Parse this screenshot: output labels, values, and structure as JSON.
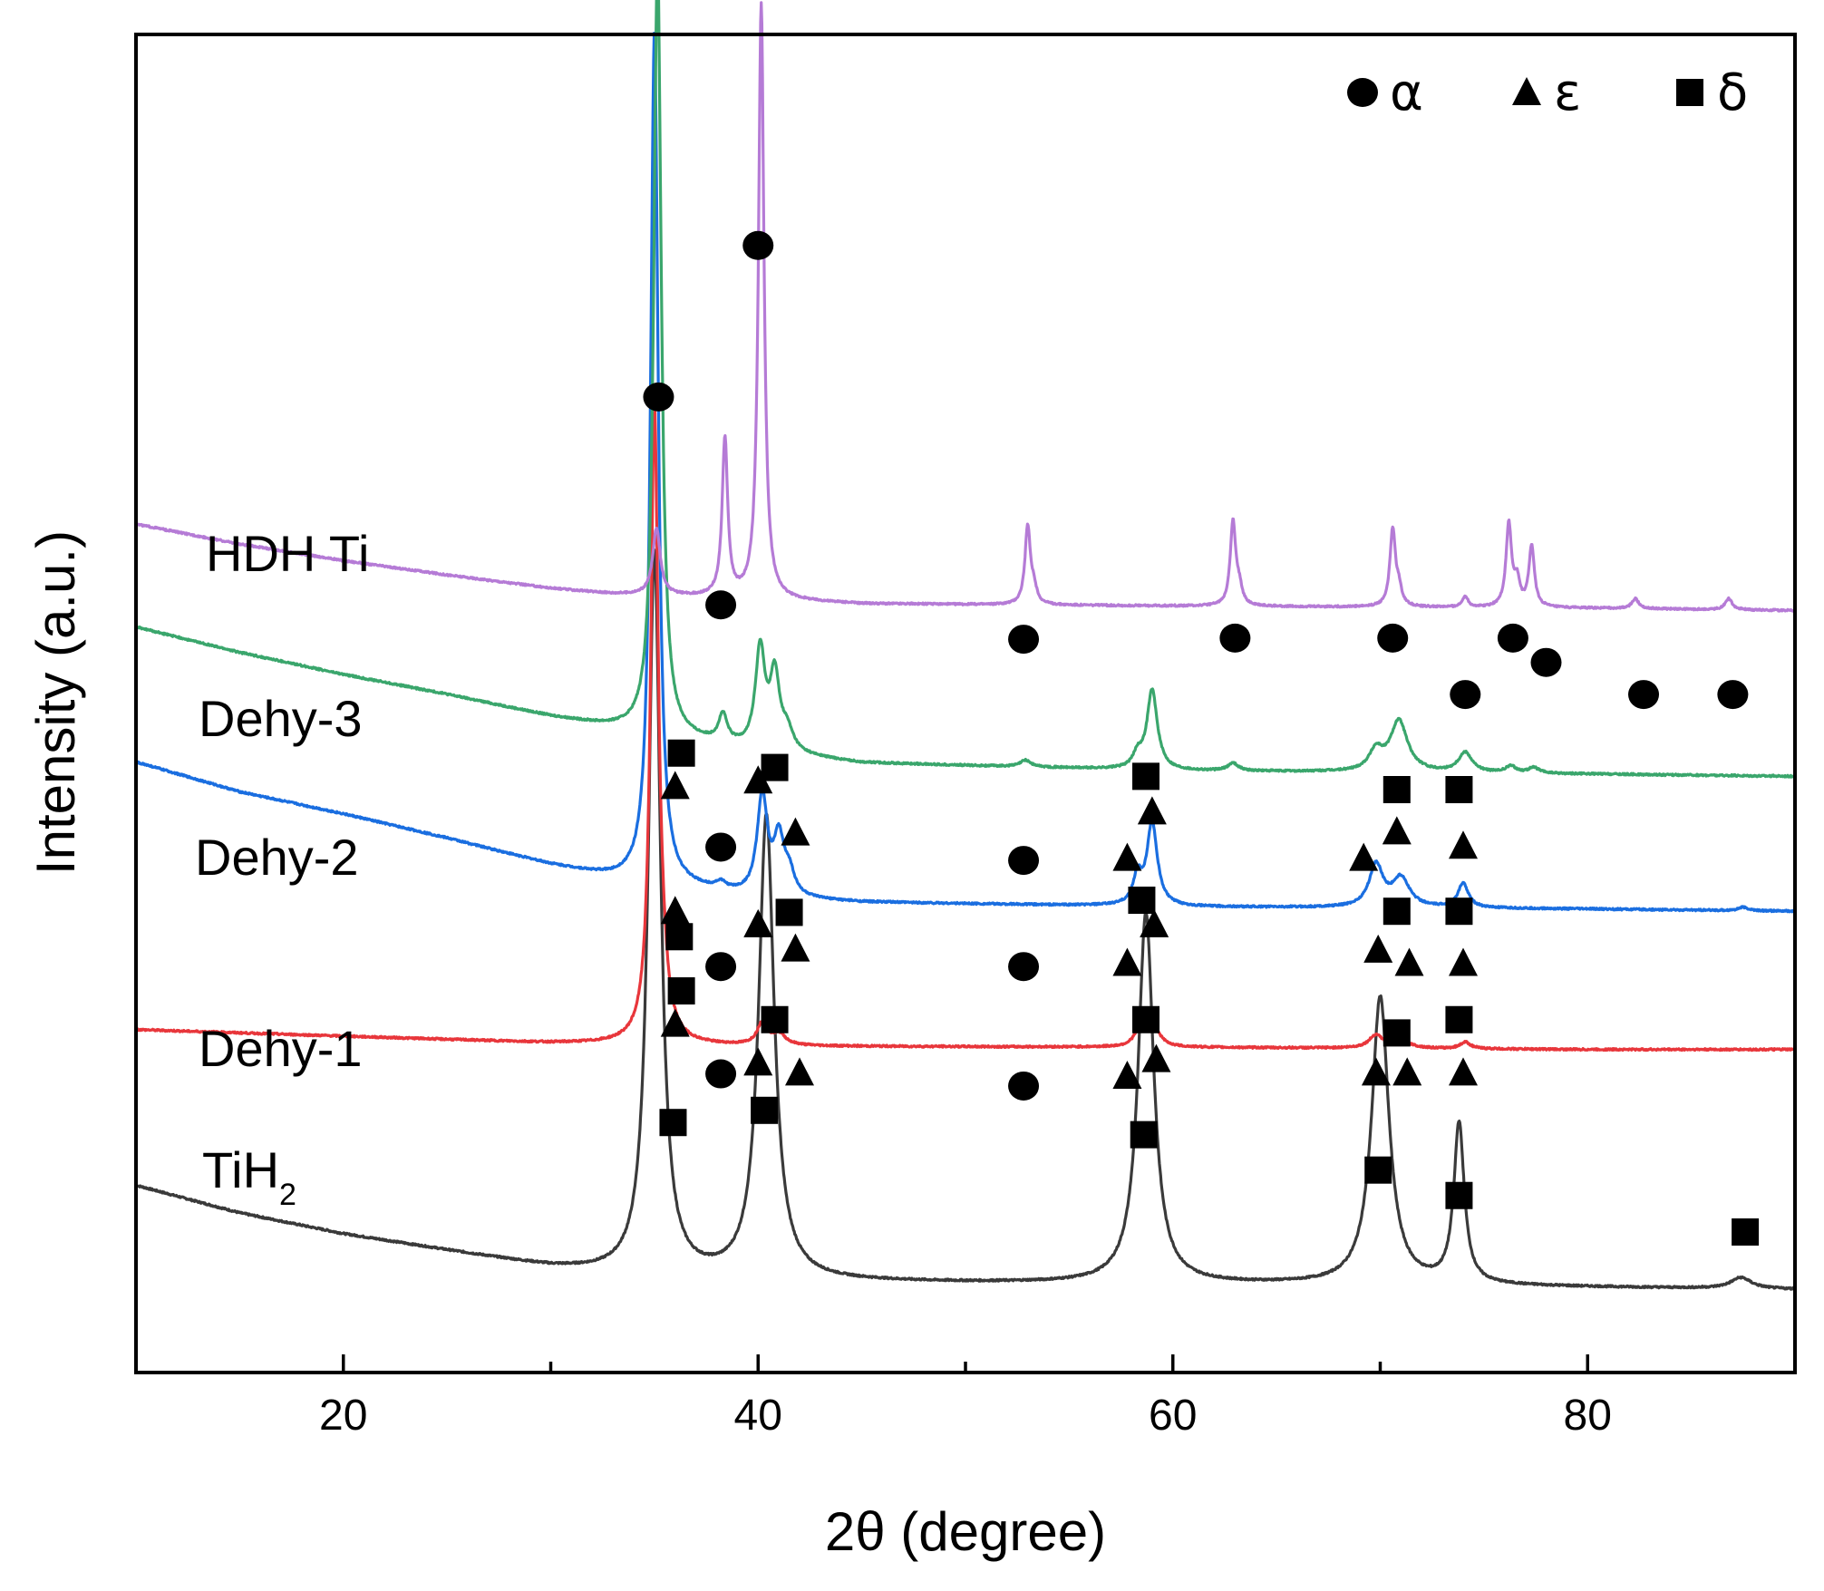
{
  "chart_data": {
    "type": "line",
    "title": "",
    "xlabel": "2θ (degree)",
    "ylabel": "Intensity (a.u.)",
    "xlim": [
      10,
      90
    ],
    "xticks": [
      20,
      30,
      40,
      50,
      60,
      70,
      80
    ],
    "xtick_labels": [
      "20",
      "40",
      "60",
      "80"
    ],
    "yticks": "none",
    "legend": {
      "position": "top-right",
      "entries": [
        {
          "marker": "circle",
          "label": "α"
        },
        {
          "marker": "triangle",
          "label": "ε"
        },
        {
          "marker": "square",
          "label": "δ"
        }
      ]
    },
    "series": [
      {
        "name": "TiH2",
        "label_main": "TiH",
        "label_sub": "2",
        "color": "#3a3a3a",
        "offset": 0,
        "noise": 0.8,
        "background": [
          [
            10,
            92
          ],
          [
            15,
            67
          ],
          [
            20,
            48
          ],
          [
            25,
            33
          ],
          [
            30,
            18
          ],
          [
            34,
            10
          ],
          [
            40,
            6
          ],
          [
            50,
            4
          ],
          [
            60,
            3
          ],
          [
            70,
            2
          ],
          [
            80,
            0
          ],
          [
            90,
            -2
          ]
        ],
        "peaks": [
          [
            35.0,
            655,
            0.35
          ],
          [
            40.4,
            420,
            0.45
          ],
          [
            58.7,
            335,
            0.45
          ],
          [
            70.0,
            260,
            0.5
          ],
          [
            73.8,
            145,
            0.3
          ],
          [
            87.4,
            10,
            0.6
          ]
        ]
      },
      {
        "name": "Dehy-1",
        "label_main": "Dehy-1",
        "color": "#e8363b",
        "offset": 215,
        "noise": 0.8,
        "background": [
          [
            10,
            18
          ],
          [
            20,
            12
          ],
          [
            30,
            6
          ],
          [
            40,
            3
          ],
          [
            60,
            2
          ],
          [
            80,
            0
          ],
          [
            90,
            0
          ]
        ],
        "peaks": [
          [
            35.0,
            570,
            0.22
          ],
          [
            35.4,
            30,
            0.3
          ],
          [
            40.2,
            20,
            0.3
          ],
          [
            41.0,
            10,
            0.4
          ],
          [
            58.3,
            10,
            0.3
          ],
          [
            59.0,
            24,
            0.35
          ],
          [
            69.8,
            12,
            0.4
          ],
          [
            71.1,
            6,
            0.5
          ],
          [
            74.1,
            6,
            0.3
          ]
        ]
      },
      {
        "name": "Dehy-2",
        "label_main": "Dehy-2",
        "color": "#1a6ee0",
        "offset": 340,
        "noise": 0.8,
        "background": [
          [
            10,
            135
          ],
          [
            15,
            108
          ],
          [
            20,
            88
          ],
          [
            25,
            66
          ],
          [
            30,
            42
          ],
          [
            33,
            30
          ],
          [
            40,
            12
          ],
          [
            45,
            8
          ],
          [
            60,
            4
          ],
          [
            80,
            2
          ],
          [
            90,
            0
          ]
        ],
        "peaks": [
          [
            35.0,
            770,
            0.22
          ],
          [
            38.2,
            6,
            0.3
          ],
          [
            40.2,
            90,
            0.3
          ],
          [
            41.0,
            50,
            0.3
          ],
          [
            41.5,
            20,
            0.3
          ],
          [
            58.3,
            25,
            0.25
          ],
          [
            59.0,
            75,
            0.3
          ],
          [
            69.8,
            38,
            0.4
          ],
          [
            71.0,
            26,
            0.5
          ],
          [
            74.0,
            22,
            0.3
          ],
          [
            87.5,
            3,
            0.3
          ]
        ]
      },
      {
        "name": "Dehy-3",
        "label_main": "Dehy-3",
        "color": "#3aa66c",
        "offset": 462,
        "noise": 0.8,
        "background": [
          [
            10,
            135
          ],
          [
            15,
            112
          ],
          [
            20,
            92
          ],
          [
            25,
            74
          ],
          [
            30,
            54
          ],
          [
            33,
            44
          ],
          [
            40,
            22
          ],
          [
            45,
            12
          ],
          [
            60,
            5
          ],
          [
            80,
            2
          ],
          [
            90,
            0
          ]
        ],
        "peaks": [
          [
            35.15,
            700,
            0.22
          ],
          [
            38.3,
            25,
            0.25
          ],
          [
            40.1,
            90,
            0.28
          ],
          [
            40.8,
            66,
            0.28
          ],
          [
            41.4,
            18,
            0.35
          ],
          [
            52.9,
            6,
            0.3
          ],
          [
            58.3,
            12,
            0.25
          ],
          [
            59.0,
            72,
            0.3
          ],
          [
            62.9,
            7,
            0.3
          ],
          [
            69.8,
            18,
            0.4
          ],
          [
            70.9,
            46,
            0.5
          ],
          [
            74.1,
            18,
            0.4
          ],
          [
            76.3,
            6,
            0.3
          ],
          [
            77.4,
            5,
            0.3
          ]
        ]
      },
      {
        "name": "HDH Ti",
        "label_main": "HDH Ti",
        "color": "#b57bd6",
        "offset": 612,
        "noise": 0.8,
        "background": [
          [
            10,
            78
          ],
          [
            15,
            60
          ],
          [
            20,
            45
          ],
          [
            25,
            32
          ],
          [
            30,
            20
          ],
          [
            33,
            15
          ],
          [
            40,
            10
          ],
          [
            45,
            6
          ],
          [
            60,
            4
          ],
          [
            80,
            2
          ],
          [
            90,
            0
          ]
        ],
        "peaks": [
          [
            35.1,
            60,
            0.22
          ],
          [
            38.4,
            142,
            0.16
          ],
          [
            40.15,
            538,
            0.16
          ],
          [
            53.0,
            70,
            0.16
          ],
          [
            53.3,
            12,
            0.16
          ],
          [
            62.9,
            76,
            0.16
          ],
          [
            63.2,
            14,
            0.16
          ],
          [
            70.6,
            70,
            0.16
          ],
          [
            70.9,
            14,
            0.16
          ],
          [
            74.1,
            10,
            0.16
          ],
          [
            76.2,
            75,
            0.16
          ],
          [
            76.6,
            22,
            0.16
          ],
          [
            77.3,
            55,
            0.16
          ],
          [
            82.3,
            9,
            0.2
          ],
          [
            86.8,
            10,
            0.2
          ]
        ]
      }
    ],
    "markers": [
      {
        "type": "circle",
        "x": 35.2,
        "y": 805
      },
      {
        "type": "circle",
        "x": 40.0,
        "y": 942
      },
      {
        "type": "circle",
        "x": 38.2,
        "y": 617
      },
      {
        "type": "circle",
        "x": 52.8,
        "y": 586
      },
      {
        "type": "circle",
        "x": 63.0,
        "y": 587
      },
      {
        "type": "circle",
        "x": 70.6,
        "y": 587
      },
      {
        "type": "circle",
        "x": 76.4,
        "y": 587
      },
      {
        "type": "circle",
        "x": 78.0,
        "y": 565
      },
      {
        "type": "circle",
        "x": 74.1,
        "y": 536
      },
      {
        "type": "circle",
        "x": 82.7,
        "y": 536
      },
      {
        "type": "circle",
        "x": 87.0,
        "y": 536
      },
      {
        "type": "square",
        "x": 36.3,
        "y": 483
      },
      {
        "type": "triangle",
        "x": 36.0,
        "y": 453
      },
      {
        "type": "square",
        "x": 40.8,
        "y": 470
      },
      {
        "type": "triangle",
        "x": 40.0,
        "y": 458
      },
      {
        "type": "triangle",
        "x": 41.8,
        "y": 411
      },
      {
        "type": "circle",
        "x": 38.2,
        "y": 398
      },
      {
        "type": "circle",
        "x": 52.8,
        "y": 386
      },
      {
        "type": "square",
        "x": 58.7,
        "y": 462
      },
      {
        "type": "triangle",
        "x": 59.0,
        "y": 430
      },
      {
        "type": "triangle",
        "x": 57.8,
        "y": 388
      },
      {
        "type": "square",
        "x": 70.8,
        "y": 450
      },
      {
        "type": "triangle",
        "x": 70.8,
        "y": 412
      },
      {
        "type": "triangle",
        "x": 69.2,
        "y": 388
      },
      {
        "type": "square",
        "x": 73.8,
        "y": 450
      },
      {
        "type": "triangle",
        "x": 74.0,
        "y": 399
      },
      {
        "type": "triangle",
        "x": 36.0,
        "y": 340
      },
      {
        "type": "square",
        "x": 36.2,
        "y": 317
      },
      {
        "type": "circle",
        "x": 38.2,
        "y": 290
      },
      {
        "type": "triangle",
        "x": 40.0,
        "y": 328
      },
      {
        "type": "square",
        "x": 41.5,
        "y": 339
      },
      {
        "type": "triangle",
        "x": 41.8,
        "y": 306
      },
      {
        "type": "circle",
        "x": 52.8,
        "y": 290
      },
      {
        "type": "square",
        "x": 58.5,
        "y": 350
      },
      {
        "type": "triangle",
        "x": 59.1,
        "y": 328
      },
      {
        "type": "triangle",
        "x": 57.8,
        "y": 293
      },
      {
        "type": "square",
        "x": 70.8,
        "y": 340
      },
      {
        "type": "triangle",
        "x": 69.9,
        "y": 305
      },
      {
        "type": "triangle",
        "x": 71.4,
        "y": 293
      },
      {
        "type": "square",
        "x": 73.8,
        "y": 340
      },
      {
        "type": "triangle",
        "x": 74.0,
        "y": 293
      },
      {
        "type": "square",
        "x": 36.3,
        "y": 268
      },
      {
        "type": "triangle",
        "x": 36.0,
        "y": 238
      },
      {
        "type": "circle",
        "x": 38.2,
        "y": 193
      },
      {
        "type": "square",
        "x": 40.8,
        "y": 242
      },
      {
        "type": "triangle",
        "x": 40.0,
        "y": 203
      },
      {
        "type": "triangle",
        "x": 42.0,
        "y": 194
      },
      {
        "type": "circle",
        "x": 52.8,
        "y": 182
      },
      {
        "type": "square",
        "x": 58.7,
        "y": 242
      },
      {
        "type": "triangle",
        "x": 59.2,
        "y": 206
      },
      {
        "type": "triangle",
        "x": 57.8,
        "y": 191
      },
      {
        "type": "square",
        "x": 70.8,
        "y": 230
      },
      {
        "type": "triangle",
        "x": 69.8,
        "y": 194
      },
      {
        "type": "triangle",
        "x": 71.3,
        "y": 194
      },
      {
        "type": "square",
        "x": 73.8,
        "y": 242
      },
      {
        "type": "triangle",
        "x": 74.0,
        "y": 194
      },
      {
        "type": "square",
        "x": 35.9,
        "y": 149
      },
      {
        "type": "square",
        "x": 40.3,
        "y": 160
      },
      {
        "type": "square",
        "x": 58.6,
        "y": 138
      },
      {
        "type": "square",
        "x": 69.9,
        "y": 106
      },
      {
        "type": "square",
        "x": 73.8,
        "y": 83
      },
      {
        "type": "square",
        "x": 87.6,
        "y": 50
      }
    ]
  }
}
